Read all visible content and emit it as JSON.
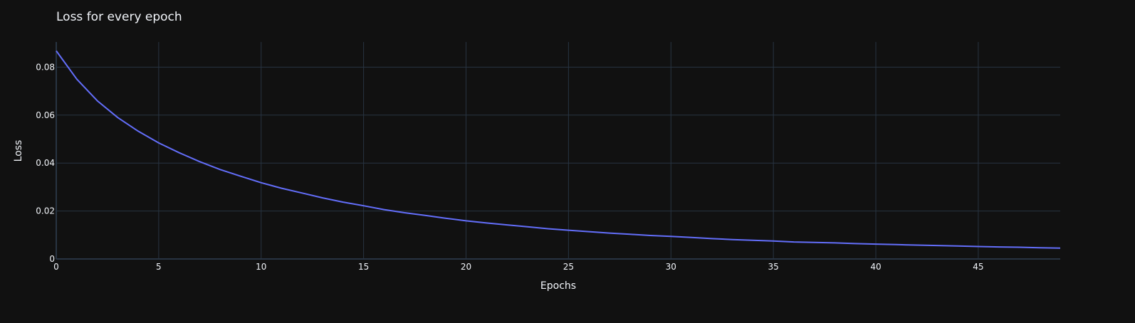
{
  "chart_data": {
    "type": "line",
    "title": "Loss for every epoch",
    "xlabel": "Epochs",
    "ylabel": "Loss",
    "xlim": [
      0,
      49
    ],
    "ylim": [
      0,
      0.0905
    ],
    "xticks": [
      0,
      5,
      10,
      15,
      20,
      25,
      30,
      35,
      40,
      45
    ],
    "xtick_labels": [
      "0",
      "5",
      "10",
      "15",
      "20",
      "25",
      "30",
      "35",
      "40",
      "45"
    ],
    "yticks": [
      0,
      0.02,
      0.04,
      0.06,
      0.08
    ],
    "ytick_labels": [
      "0",
      "0.02",
      "0.04",
      "0.06",
      "0.08"
    ],
    "grid": true,
    "legend": "none",
    "colors": {
      "background": "#111111",
      "grid": "#283442",
      "zeroline": "#283442",
      "text": "#f2f5fa",
      "line": "#636efa"
    },
    "series": [
      {
        "x": [
          0,
          1,
          2,
          3,
          4,
          5,
          6,
          7,
          8,
          9,
          10,
          11,
          12,
          13,
          14,
          15,
          16,
          17,
          18,
          19,
          20,
          21,
          22,
          23,
          24,
          25,
          26,
          27,
          28,
          29,
          30,
          31,
          32,
          33,
          34,
          35,
          36,
          37,
          38,
          39,
          40,
          41,
          42,
          43,
          44,
          45,
          46,
          47,
          48,
          49
        ],
        "values": [
          0.0868,
          0.075,
          0.066,
          0.059,
          0.0533,
          0.0484,
          0.0443,
          0.0406,
          0.0373,
          0.0345,
          0.0318,
          0.0295,
          0.0275,
          0.0255,
          0.0237,
          0.0222,
          0.0206,
          0.0193,
          0.0182,
          0.017,
          0.0159,
          0.015,
          0.0142,
          0.0134,
          0.0126,
          0.012,
          0.0114,
          0.0108,
          0.0103,
          0.0098,
          0.0094,
          0.009,
          0.0085,
          0.0081,
          0.0078,
          0.0075,
          0.0071,
          0.0069,
          0.0067,
          0.0064,
          0.0062,
          0.006,
          0.0058,
          0.0056,
          0.0054,
          0.0052,
          0.005,
          0.0049,
          0.0047,
          0.0045
        ]
      }
    ]
  }
}
